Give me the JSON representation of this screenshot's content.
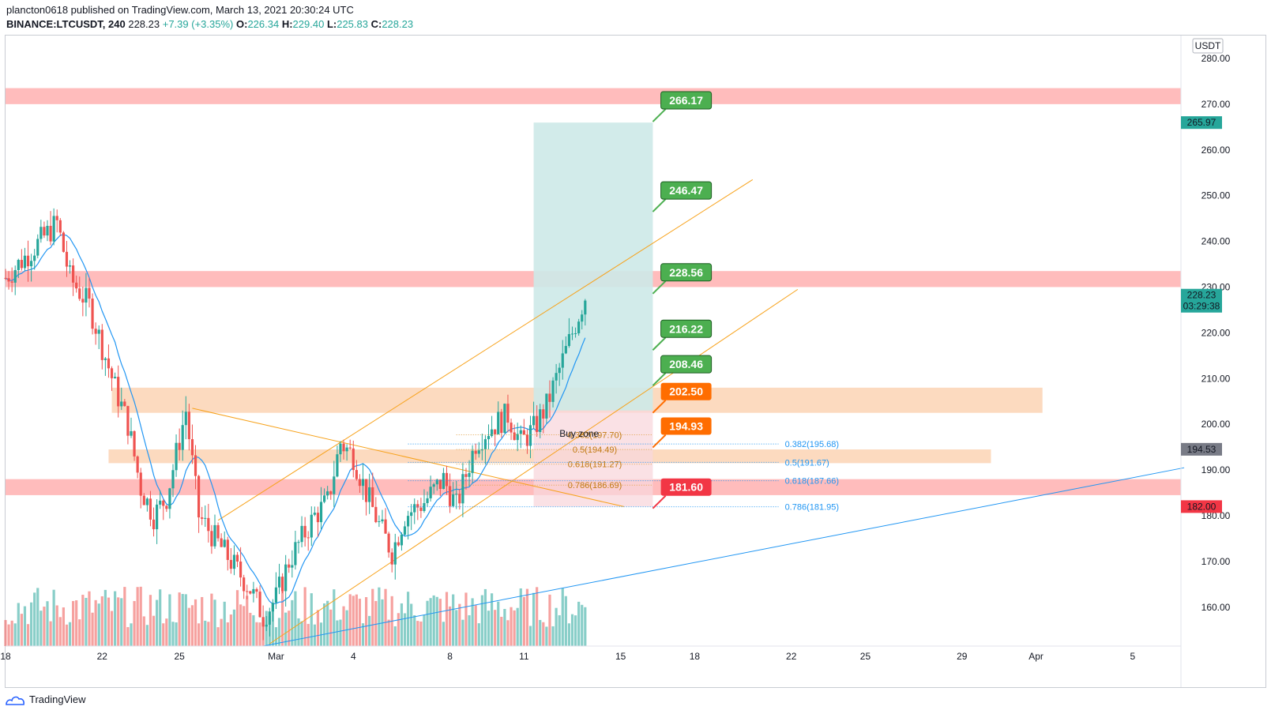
{
  "header": {
    "publisher": "plancton0618 published on TradingView.com, March 13, 2021 20:30:24 UTC",
    "symbol": "BINANCE:LTCUSDT, 240",
    "last": "228.23",
    "change": "+7.39 (+3.35%)",
    "o_label": "O:",
    "o": "226.34",
    "h_label": "H:",
    "h": "229.40",
    "l_label": "L:",
    "l": "225.83",
    "c_label": "C:",
    "c": "228.23"
  },
  "footer": {
    "brand": "TradingView"
  },
  "colors": {
    "up": "#26a69a",
    "down": "#ef5350",
    "ma": "#2196f3",
    "trend": "#f7a21b",
    "resistance": "#ffbcbc",
    "support": "#fbd4b4",
    "target": "#4caf50",
    "entry": "#ff6d00",
    "stop": "#f23645",
    "position_profit": "#cde9e8",
    "position_loss": "#f8d7dc"
  },
  "chart_data": {
    "type": "candlestick",
    "symbol": "BINANCE:LTCUSDT",
    "interval": "240",
    "currency_label": "USDT",
    "y_axis": {
      "ylim": [
        151.5,
        285.0
      ],
      "ticks": [
        160,
        170,
        180,
        190,
        200,
        210,
        220,
        230,
        240,
        250,
        260,
        270,
        280
      ],
      "tick_labels": [
        "160.00",
        "170.00",
        "180.00",
        "190.00",
        "200.00",
        "210.00",
        "220.00",
        "230.00",
        "240.00",
        "250.00",
        "260.00",
        "270.00",
        "280.00"
      ]
    },
    "x_axis": {
      "xlim": [
        0,
        365
      ],
      "ticks": [
        {
          "x": 0,
          "label": "18"
        },
        {
          "x": 30,
          "label": "22"
        },
        {
          "x": 54,
          "label": "25"
        },
        {
          "x": 84,
          "label": "Mar"
        },
        {
          "x": 108,
          "label": "4"
        },
        {
          "x": 138,
          "label": "8"
        },
        {
          "x": 161,
          "label": "11"
        },
        {
          "x": 191,
          "label": "15"
        },
        {
          "x": 214,
          "label": "18"
        },
        {
          "x": 244,
          "label": "22"
        },
        {
          "x": 267,
          "label": "25"
        },
        {
          "x": 297,
          "label": "29"
        },
        {
          "x": 320,
          "label": "Apr"
        },
        {
          "x": 350,
          "label": "5"
        }
      ]
    },
    "series_anchor_points": [
      [
        0,
        232
      ],
      [
        8,
        238
      ],
      [
        16,
        244
      ],
      [
        20,
        232
      ],
      [
        26,
        226
      ],
      [
        34,
        208
      ],
      [
        38,
        200
      ],
      [
        42,
        186
      ],
      [
        46,
        180
      ],
      [
        50,
        184
      ],
      [
        56,
        203
      ],
      [
        60,
        180
      ],
      [
        64,
        176
      ],
      [
        70,
        170
      ],
      [
        76,
        164
      ],
      [
        80,
        158
      ],
      [
        84,
        162
      ],
      [
        88,
        170
      ],
      [
        92,
        175
      ],
      [
        96,
        180
      ],
      [
        100,
        183
      ],
      [
        104,
        196
      ],
      [
        108,
        193
      ],
      [
        112,
        185
      ],
      [
        116,
        178
      ],
      [
        120,
        172
      ],
      [
        124,
        180
      ],
      [
        130,
        183
      ],
      [
        136,
        188
      ],
      [
        140,
        182
      ],
      [
        146,
        196
      ],
      [
        150,
        199
      ],
      [
        156,
        202
      ],
      [
        160,
        196
      ],
      [
        164,
        199
      ],
      [
        168,
        204
      ],
      [
        172,
        212
      ],
      [
        176,
        220
      ],
      [
        180,
        228
      ]
    ],
    "volume_scale_max": 1.0,
    "last_price": "228.23",
    "countdown": "03:29:38",
    "ma_label_value": "194.53",
    "resistance_zones": [
      {
        "low": 270.0,
        "high": 273.5
      },
      {
        "low": 230.0,
        "high": 233.5
      },
      {
        "low": 184.5,
        "high": 188.0
      }
    ],
    "support_zones": [
      {
        "low": 202.5,
        "high": 208.0,
        "x_from": 33,
        "x_to": 322
      },
      {
        "low": 191.5,
        "high": 194.5,
        "x_from": 32,
        "x_to": 306
      }
    ],
    "position": {
      "x_from": 164,
      "x_to": 201,
      "entry": 203.0,
      "target": 265.97,
      "stop": 182.0,
      "target_label": "265.97",
      "stop_label": "182.00"
    },
    "targets": [
      {
        "price": 266.17,
        "label": "266.17",
        "kind": "target"
      },
      {
        "price": 246.47,
        "label": "246.47",
        "kind": "target"
      },
      {
        "price": 228.56,
        "label": "228.56",
        "kind": "target"
      },
      {
        "price": 216.22,
        "label": "216.22",
        "kind": "target"
      },
      {
        "price": 208.46,
        "label": "208.46",
        "kind": "target"
      },
      {
        "price": 202.5,
        "label": "202.50",
        "kind": "entry"
      },
      {
        "price": 194.93,
        "label": "194.93",
        "kind": "entry"
      },
      {
        "price": 181.6,
        "label": "181.60",
        "kind": "stop"
      }
    ],
    "fib_left": [
      {
        "price": 197.7,
        "label": "0.382(197.70)"
      },
      {
        "price": 194.49,
        "label": "0.5(194.49)"
      },
      {
        "price": 191.27,
        "label": "0.618(191.27)"
      },
      {
        "price": 186.69,
        "label": "0.786(186.69)"
      }
    ],
    "fib_right": [
      {
        "price": 195.68,
        "label": "0.382(195.68)"
      },
      {
        "price": 191.67,
        "label": "0.5(191.67)"
      },
      {
        "price": 187.66,
        "label": "0.618(187.66)"
      },
      {
        "price": 181.95,
        "label": "0.786(181.95)"
      }
    ],
    "annotation": "Buy zone",
    "trendlines": [
      {
        "x1": 66,
        "y1": 179,
        "x2": 232,
        "y2": 253.5,
        "color": "trend"
      },
      {
        "x1": 82,
        "y1": 152,
        "x2": 246,
        "y2": 229.5,
        "color": "trend"
      },
      {
        "x1": 58,
        "y1": 203.5,
        "x2": 192,
        "y2": 182,
        "color": "trend"
      },
      {
        "x1": 80,
        "y1": 151.5,
        "x2": 366,
        "y2": 190.5,
        "color": "ma"
      }
    ]
  }
}
